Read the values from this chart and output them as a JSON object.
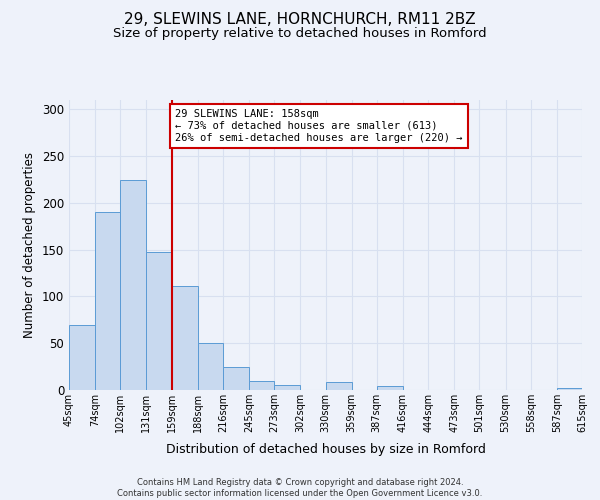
{
  "title": "29, SLEWINS LANE, HORNCHURCH, RM11 2BZ",
  "subtitle": "Size of property relative to detached houses in Romford",
  "xlabel": "Distribution of detached houses by size in Romford",
  "ylabel": "Number of detached properties",
  "bin_edges": [
    45,
    74,
    102,
    131,
    159,
    188,
    216,
    245,
    273,
    302,
    330,
    359,
    387,
    416,
    444,
    473,
    501,
    530,
    558,
    587,
    615
  ],
  "bar_heights": [
    70,
    190,
    225,
    147,
    111,
    50,
    25,
    10,
    5,
    0,
    9,
    0,
    4,
    0,
    0,
    0,
    0,
    0,
    0,
    2
  ],
  "bar_color": "#c8d9ef",
  "bar_edgecolor": "#5b9bd5",
  "vline_x": 159,
  "vline_color": "#cc0000",
  "annotation_text": "29 SLEWINS LANE: 158sqm\n← 73% of detached houses are smaller (613)\n26% of semi-detached houses are larger (220) →",
  "ylim": [
    0,
    310
  ],
  "xlim": [
    45,
    615
  ],
  "background_color": "#eef2fa",
  "plot_bg_color": "#eef2fa",
  "footer_line1": "Contains HM Land Registry data © Crown copyright and database right 2024.",
  "footer_line2": "Contains public sector information licensed under the Open Government Licence v3.0.",
  "title_fontsize": 11,
  "subtitle_fontsize": 9.5,
  "tick_labels": [
    "45sqm",
    "74sqm",
    "102sqm",
    "131sqm",
    "159sqm",
    "188sqm",
    "216sqm",
    "245sqm",
    "273sqm",
    "302sqm",
    "330sqm",
    "359sqm",
    "387sqm",
    "416sqm",
    "444sqm",
    "473sqm",
    "501sqm",
    "530sqm",
    "558sqm",
    "587sqm",
    "615sqm"
  ],
  "yticks": [
    0,
    50,
    100,
    150,
    200,
    250,
    300
  ],
  "grid_color": "#d8e0f0"
}
